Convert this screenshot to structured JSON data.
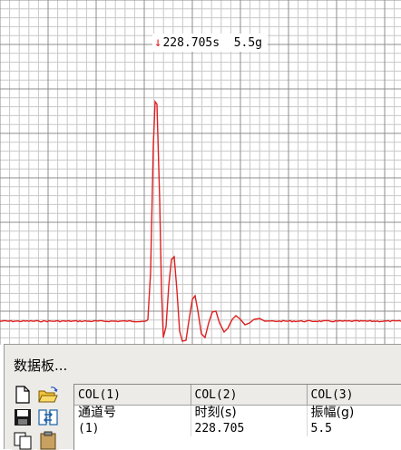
{
  "waveform": {
    "cursor_label": "228.705s  5.5g",
    "line_color": "#e02020",
    "grid_color": "#c8c8c8",
    "grid_major_color": "#8c8c8c"
  },
  "data_panel": {
    "title": "数据板...",
    "columns": [
      "COL(1)",
      "COL(2)",
      "COL(3)"
    ],
    "header_row": [
      "通道号",
      "时刻(s)",
      "振幅(g)"
    ],
    "rows": [
      [
        "(1)",
        "228.705",
        "5.5"
      ]
    ]
  },
  "toolbar": {
    "icons": [
      "new-file-icon",
      "open-folder-icon",
      "save-icon",
      "swap-columns-icon",
      "copy-icon",
      "paste-icon"
    ]
  }
}
